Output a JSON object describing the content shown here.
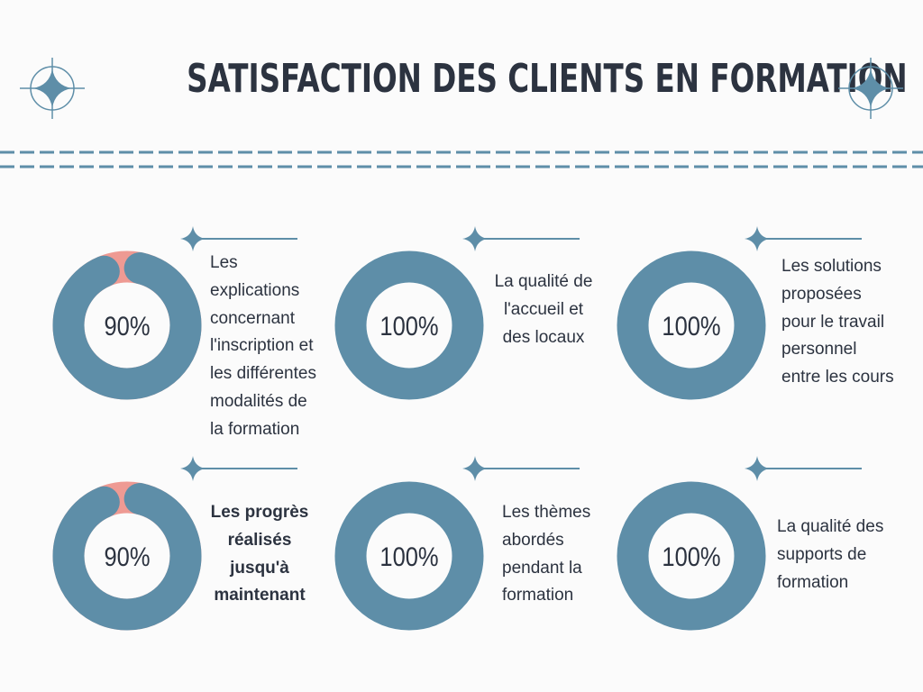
{
  "title": "SATISFACTION DES CLIENTS EN FORMATION",
  "colors": {
    "primary": "#5e8ea8",
    "accent": "#ee9a93",
    "text": "#2c3340"
  },
  "icons": {
    "header": "compass-star-icon",
    "card": "sparkle-line-icon"
  },
  "chart_data": {
    "type": "pie",
    "items": [
      {
        "label": "Les explications concernant l'inscription et les différentes modalités de la formation",
        "value": 90,
        "display": "90%"
      },
      {
        "label": "La qualité de l'accueil et des locaux",
        "value": 100,
        "display": "100%"
      },
      {
        "label": "Les solutions proposées pour le travail personnel entre les cours",
        "value": 100,
        "display": "100%"
      },
      {
        "label": "Les progrès réalisés jusqu'à maintenant",
        "value": 90,
        "display": "90%"
      },
      {
        "label": "Les thèmes abordés pendant la formation",
        "value": 100,
        "display": "100%"
      },
      {
        "label": "La qualité des supports de formation",
        "value": 100,
        "display": "100%"
      }
    ]
  }
}
